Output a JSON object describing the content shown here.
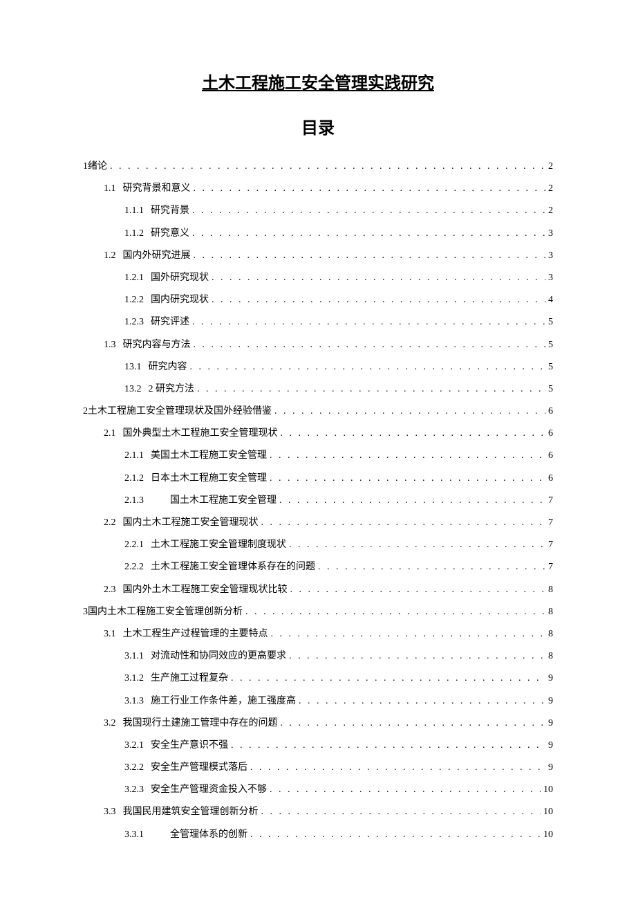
{
  "title": "土木工程施工安全管理实践研究",
  "subtitle": "目录",
  "toc": [
    {
      "level": 1,
      "num": "1",
      "text": "绪论",
      "page": "2",
      "gap": false
    },
    {
      "level": 2,
      "num": "1.1",
      "text": "研究背景和意义",
      "page": "2",
      "gap": true
    },
    {
      "level": 3,
      "num": "1.1.1",
      "text": "研究背景",
      "page": "2",
      "gap": true
    },
    {
      "level": 3,
      "num": "1.1.2",
      "text": "研究意义",
      "page": "3",
      "gap": true
    },
    {
      "level": 2,
      "num": "1.2",
      "text": "国内外研究进展",
      "page": "3",
      "gap": true
    },
    {
      "level": 3,
      "num": "1.2.1",
      "text": "国外研究现状",
      "page": "3",
      "gap": true
    },
    {
      "level": 3,
      "num": "1.2.2",
      "text": "国内研究现状",
      "page": "4",
      "gap": true
    },
    {
      "level": 3,
      "num": "1.2.3",
      "text": "研究评述",
      "page": "5",
      "gap": true
    },
    {
      "level": 2,
      "num": "1.3",
      "text": "研究内容与方法",
      "page": "5",
      "gap": true
    },
    {
      "level": 3,
      "num": "13.1",
      "text": "研究内容",
      "page": "5",
      "gap": true
    },
    {
      "level": 3,
      "num": "13.2",
      "text": "2 研究方法",
      "page": "5",
      "gap": true
    },
    {
      "level": 1,
      "num": "2",
      "text": "土木工程施工安全管理现状及国外经验借鉴",
      "page": "6",
      "gap": false
    },
    {
      "level": 2,
      "num": "2.1",
      "text": "国外典型土木工程施工安全管理现状",
      "page": "6",
      "gap": true
    },
    {
      "level": 3,
      "num": "2.1.1",
      "text": "美国土木工程施工安全管理",
      "page": "6",
      "gap": true
    },
    {
      "level": 3,
      "num": "2.1.2",
      "text": "日本土木工程施工安全管理",
      "page": "6",
      "gap": true
    },
    {
      "level": 3,
      "num": "2.1.3",
      "text": "　　国土木工程施工安全管理",
      "page": "7",
      "gap": true
    },
    {
      "level": 2,
      "num": "2.2",
      "text": "国内土木工程施工安全管理现状",
      "page": "7",
      "gap": true
    },
    {
      "level": 3,
      "num": "2.2.1",
      "text": "土木工程施工安全管理制度现状",
      "page": "7",
      "gap": true
    },
    {
      "level": 3,
      "num": "2.2.2",
      "text": "土木工程施工安全管理体系存在的问题",
      "page": "7",
      "gap": true
    },
    {
      "level": 2,
      "num": "2.3",
      "text": "国内外土木工程施工安全管理现状比较",
      "page": "8",
      "gap": true
    },
    {
      "level": 1,
      "num": "3",
      "text": "国内土木工程施工安全管理创新分析",
      "page": "8",
      "gap": false
    },
    {
      "level": 2,
      "num": "3.1",
      "text": "土木工程生产过程管理的主要特点",
      "page": "8",
      "gap": true
    },
    {
      "level": 3,
      "num": "3.1.1",
      "text": "对流动性和协同效应的更高要求",
      "page": "8",
      "gap": true
    },
    {
      "level": 3,
      "num": "3.1.2",
      "text": "生产施工过程复杂",
      "page": "9",
      "gap": true
    },
    {
      "level": 3,
      "num": "3.1.3",
      "text": "施工行业工作条件差，施工强度高",
      "page": "9",
      "gap": true
    },
    {
      "level": 2,
      "num": "3.2",
      "text": "我国现行土建施工管理中存在的问题",
      "page": "9",
      "gap": true
    },
    {
      "level": 3,
      "num": "3.2.1",
      "text": "安全生产意识不强",
      "page": "9",
      "gap": true
    },
    {
      "level": 3,
      "num": "3.2.2",
      "text": "安全生产管理模式落后",
      "page": "9",
      "gap": true
    },
    {
      "level": 3,
      "num": "3.2.3",
      "text": "安全生产管理资金投入不够",
      "page": "10",
      "gap": true
    },
    {
      "level": 2,
      "num": "3.3",
      "text": "我国民用建筑安全管理创新分析",
      "page": "10",
      "gap": true
    },
    {
      "level": 3,
      "num": "3.3.1",
      "text": "　　全管理体系的创新",
      "page": "10",
      "gap": true
    }
  ]
}
